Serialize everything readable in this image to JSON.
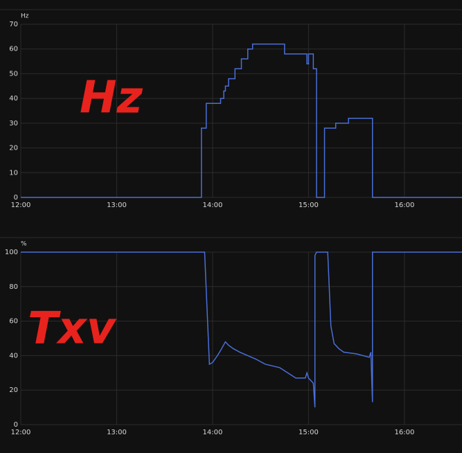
{
  "chart_data": [
    {
      "type": "line",
      "step": true,
      "unit_label": "Hz",
      "annotation": "Hz",
      "x": [
        "12:00",
        "13:53",
        "13:56",
        "14:05",
        "14:07",
        "14:08",
        "14:10",
        "14:14",
        "14:18",
        "14:22",
        "14:25",
        "14:45",
        "14:59",
        "15:00",
        "15:03",
        "15:05",
        "15:10",
        "15:17",
        "15:25",
        "15:40",
        "16:36"
      ],
      "series": [
        {
          "color": "#4a6fd8",
          "values": [
            0,
            28,
            38,
            40,
            43,
            45,
            48,
            52,
            56,
            60,
            62,
            58,
            54,
            58,
            52,
            0,
            28,
            30,
            32,
            0,
            0
          ]
        }
      ],
      "xlim": [
        "12:00",
        "16:36"
      ],
      "xticks": [
        "12:00",
        "13:00",
        "14:00",
        "15:00",
        "16:00"
      ],
      "ylim": [
        0,
        70
      ],
      "yticks": [
        0,
        10,
        20,
        30,
        40,
        50,
        60,
        70
      ],
      "grid": true
    },
    {
      "type": "line",
      "step": false,
      "unit_label": "%",
      "annotation": "Txv",
      "x": [
        "12:00",
        "13:55",
        "13:58",
        "14:00",
        "14:03",
        "14:05",
        "14:08",
        "14:10",
        "14:13",
        "14:17",
        "14:22",
        "14:27",
        "14:33",
        "14:42",
        "14:47",
        "14:52",
        "14:58",
        "14:59",
        "15:00",
        "15:03",
        "15:04",
        "15:04",
        "15:05",
        "15:12",
        "15:14",
        "15:16",
        "15:19",
        "15:22",
        "15:30",
        "15:38",
        "15:39",
        "15:40",
        "15:40",
        "16:36"
      ],
      "series": [
        {
          "color": "#4a6fd8",
          "values": [
            100,
            100,
            35,
            36,
            40,
            43,
            48,
            46,
            44,
            42,
            40,
            38,
            35,
            33,
            30,
            27,
            27,
            30,
            27,
            24,
            10,
            98,
            100,
            100,
            57,
            47,
            44,
            42,
            41,
            39,
            42,
            13,
            100,
            100
          ]
        }
      ],
      "xlim": [
        "12:00",
        "16:36"
      ],
      "xticks": [
        "12:00",
        "13:00",
        "14:00",
        "15:00",
        "16:00"
      ],
      "ylim": [
        0,
        100
      ],
      "yticks": [
        0,
        20,
        40,
        60,
        80,
        100
      ],
      "grid": true
    }
  ]
}
